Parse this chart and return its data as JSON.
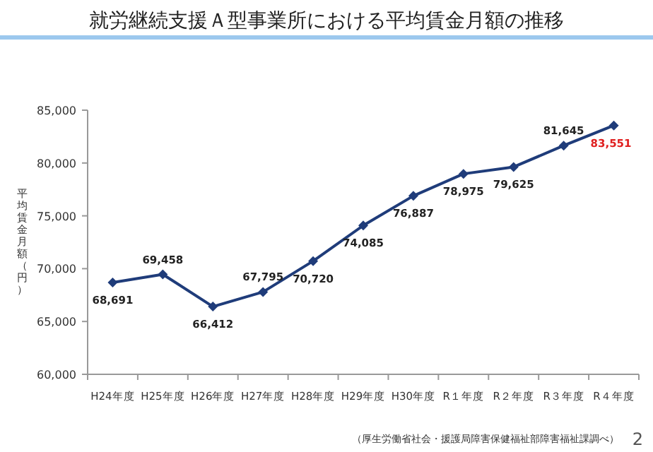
{
  "chart_data": {
    "type": "line",
    "title": "就労継続支援Ａ型事業所における平均賃金月額の推移",
    "ylabel": "平均賃金月額（円）",
    "categories": [
      "H24年度",
      "H25年度",
      "H26年度",
      "H27年度",
      "H28年度",
      "H29年度",
      "H30年度",
      "R１年度",
      "R２年度",
      "R３年度",
      "R４年度"
    ],
    "series": [
      {
        "color": "#1f3c7a",
        "values": [
          68691,
          69458,
          66412,
          67795,
          70720,
          74085,
          76887,
          78975,
          79625,
          81645,
          83551
        ],
        "value_labels": [
          "68,691",
          "69,458",
          "66,412",
          "67,795",
          "70,720",
          "74,085",
          "76,887",
          "78,975",
          "79,625",
          "81,645",
          "83,551"
        ]
      }
    ],
    "ylim": [
      60000,
      85000
    ],
    "yticks": [
      {
        "value": 60000,
        "label": "60,000"
      },
      {
        "value": 65000,
        "label": "65,000"
      },
      {
        "value": 70000,
        "label": "70,000"
      },
      {
        "value": 75000,
        "label": "75,000"
      },
      {
        "value": 80000,
        "label": "80,000"
      },
      {
        "value": 85000,
        "label": "85,000"
      }
    ],
    "marker": "diamond",
    "grid": false,
    "annotations": [
      "（厚生労働省社会・援護局障害保健福祉部障害福祉課調べ）",
      "2"
    ]
  }
}
